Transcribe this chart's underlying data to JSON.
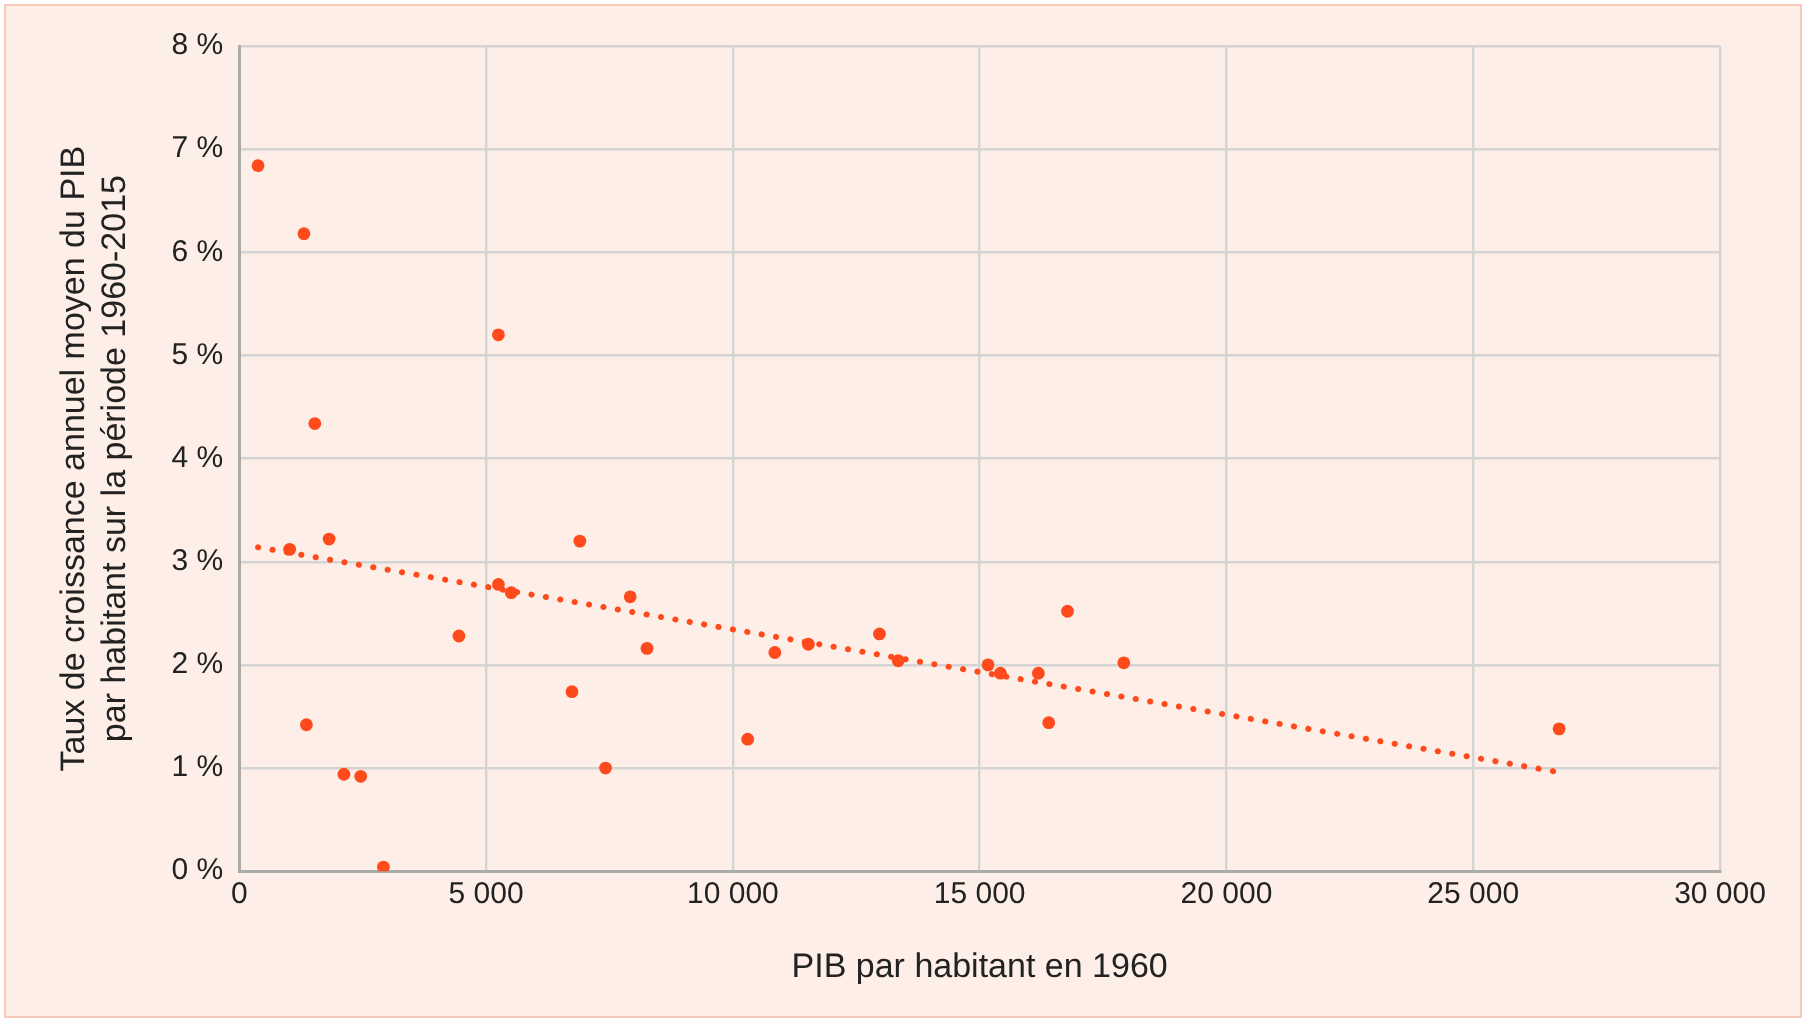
{
  "chart_data": {
    "type": "scatter",
    "xlabel": "PIB par habitant en 1960",
    "ylabel": "Taux de croissance annuel moyen du PIB\npar habitant sur la période 1960-2015",
    "series": [
      {
        "color": "#ff4a1c",
        "marker": "circle",
        "x": [
          380,
          1310,
          1530,
          1820,
          1020,
          1360,
          2120,
          2460,
          2920,
          4450,
          5250,
          5250,
          5510,
          6740,
          6900,
          7420,
          7920,
          8260,
          10300,
          10850,
          11530,
          12970,
          13350,
          15170,
          15420,
          16190,
          16400,
          16780,
          17920,
          26740
        ],
        "values": [
          6.84,
          6.18,
          4.34,
          3.22,
          3.12,
          1.42,
          0.94,
          0.92,
          0.04,
          2.28,
          5.2,
          2.78,
          2.7,
          1.74,
          3.2,
          1,
          2.66,
          2.16,
          1.28,
          2.12,
          2.2,
          2.3,
          2.04,
          2,
          1.92,
          1.92,
          1.44,
          2.52,
          2.02,
          1.38
        ]
      },
      {
        "type": "line",
        "color": "#ff4a1c",
        "line_style": "dotted",
        "marker": "none",
        "x": [
          380,
          26740
        ],
        "values": [
          3.14,
          0.96
        ]
      }
    ],
    "xlim": [
      0,
      30000
    ],
    "xticks": [
      {
        "value": 0,
        "label": "0"
      },
      {
        "value": 5000,
        "label": "5 000"
      },
      {
        "value": 10000,
        "label": "10 000"
      },
      {
        "value": 15000,
        "label": "15 000"
      },
      {
        "value": 20000,
        "label": "20 000"
      },
      {
        "value": 25000,
        "label": "25 000"
      },
      {
        "value": 30000,
        "label": "30 000"
      }
    ],
    "ylim": [
      0,
      8
    ],
    "yticks": [
      {
        "value": 0,
        "label": "0 %"
      },
      {
        "value": 1,
        "label": "1 %"
      },
      {
        "value": 2,
        "label": "2 %"
      },
      {
        "value": 3,
        "label": "3 %"
      },
      {
        "value": 4,
        "label": "4 %"
      },
      {
        "value": 5,
        "label": "5 %"
      },
      {
        "value": 6,
        "label": "6 %"
      },
      {
        "value": 7,
        "label": "7 %"
      },
      {
        "value": 8,
        "label": "8 %"
      }
    ],
    "grid": true,
    "legend": false
  }
}
